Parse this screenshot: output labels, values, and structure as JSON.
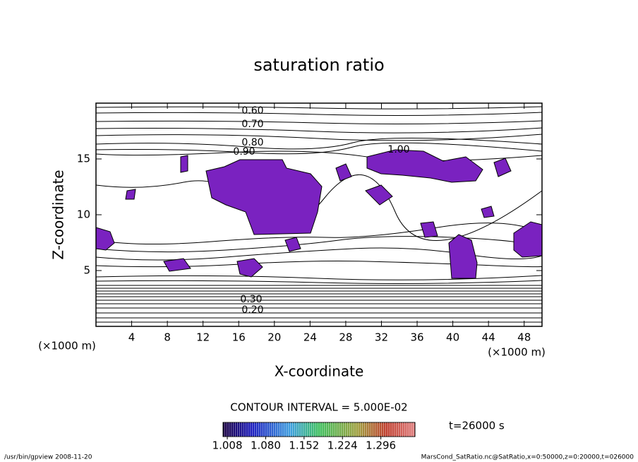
{
  "chart_data": {
    "type": "contour",
    "title": "saturation ratio",
    "x_label": "X-coordinate",
    "y_label": "Z-coordinate",
    "x_unit": "(×1000 m)",
    "y_unit": "(×1000 m)",
    "xlim": [
      0,
      50
    ],
    "xticks": [
      4,
      8,
      12,
      16,
      20,
      24,
      28,
      32,
      36,
      40,
      44,
      48
    ],
    "ylim": [
      0,
      20
    ],
    "yticks": [
      5,
      10,
      15
    ],
    "contour_labels": [
      {
        "value": 0.6,
        "label": "0.60"
      },
      {
        "value": 0.7,
        "label": "0.70"
      },
      {
        "value": 0.8,
        "label": "0.80"
      },
      {
        "value": 0.9,
        "label": "0.90"
      },
      {
        "value": 1.0,
        "label": "1.00"
      },
      {
        "value": 0.3,
        "label": "0.30"
      },
      {
        "value": 0.2,
        "label": "0.20"
      }
    ],
    "contour_interval": "CONTOUR INTERVAL = 5.000E-02",
    "colorbar": {
      "clim": [
        1.0,
        1.36
      ],
      "ticks": [
        1.008,
        {
          "value": 1.08,
          "label": "1.080"
        },
        1.152,
        1.224,
        1.296
      ]
    },
    "time_label": "t=26000 s",
    "footer_left": "/usr/bin/gpview  2008-11-20",
    "footer_right": "MarsCond_SatRatio.nc@SatRatio,x=0:50000,z=0:20000,t=026000"
  }
}
